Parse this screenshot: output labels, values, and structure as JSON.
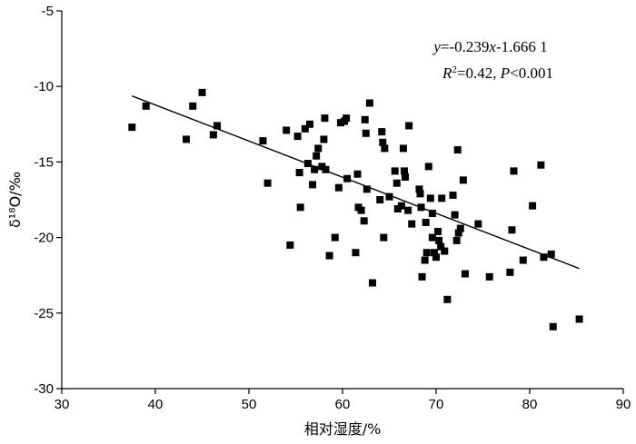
{
  "chart_data": {
    "type": "scatter",
    "title": "",
    "xlabel": "相对湿度/%",
    "ylabel": "δ¹⁸O/‰",
    "xlim": [
      30,
      90
    ],
    "ylim": [
      -30,
      -5
    ],
    "xticks": [
      30,
      40,
      50,
      60,
      70,
      80,
      90
    ],
    "yticks": [
      -5,
      -10,
      -15,
      -20,
      -25,
      -30
    ],
    "grid": false,
    "legend": "none",
    "marker": "square",
    "marker_color": "#000000",
    "points": [
      [
        37.5,
        -12.7
      ],
      [
        39.0,
        -11.3
      ],
      [
        43.3,
        -13.5
      ],
      [
        44.0,
        -11.3
      ],
      [
        45.0,
        -10.4
      ],
      [
        46.2,
        -13.2
      ],
      [
        46.6,
        -12.6
      ],
      [
        51.5,
        -13.6
      ],
      [
        52.0,
        -16.4
      ],
      [
        54.0,
        -12.9
      ],
      [
        54.4,
        -20.5
      ],
      [
        55.2,
        -13.3
      ],
      [
        55.4,
        -15.7
      ],
      [
        55.5,
        -18.0
      ],
      [
        56.0,
        -12.8
      ],
      [
        56.3,
        -15.1
      ],
      [
        56.5,
        -12.5
      ],
      [
        56.8,
        -16.5
      ],
      [
        57.0,
        -15.5
      ],
      [
        57.2,
        -14.6
      ],
      [
        57.4,
        -14.1
      ],
      [
        57.8,
        -15.3
      ],
      [
        58.0,
        -13.5
      ],
      [
        58.1,
        -12.1
      ],
      [
        58.2,
        -15.5
      ],
      [
        58.6,
        -21.2
      ],
      [
        59.2,
        -20.0
      ],
      [
        59.6,
        -16.7
      ],
      [
        59.8,
        -12.4
      ],
      [
        60.2,
        -12.3
      ],
      [
        60.4,
        -12.1
      ],
      [
        60.5,
        -16.1
      ],
      [
        61.4,
        -21.0
      ],
      [
        61.6,
        -15.8
      ],
      [
        61.7,
        -18.0
      ],
      [
        62.0,
        -18.2
      ],
      [
        62.3,
        -18.9
      ],
      [
        62.4,
        -12.2
      ],
      [
        62.5,
        -13.1
      ],
      [
        62.6,
        -16.8
      ],
      [
        62.9,
        -11.1
      ],
      [
        63.2,
        -23.0
      ],
      [
        64.0,
        -17.5
      ],
      [
        64.2,
        -13.0
      ],
      [
        64.3,
        -13.7
      ],
      [
        64.4,
        -20.0
      ],
      [
        64.5,
        -14.1
      ],
      [
        65.0,
        -17.3
      ],
      [
        65.6,
        -15.6
      ],
      [
        65.8,
        -16.4
      ],
      [
        65.9,
        -18.1
      ],
      [
        66.3,
        -17.9
      ],
      [
        66.5,
        -14.1
      ],
      [
        66.6,
        -15.6
      ],
      [
        66.7,
        -16.0
      ],
      [
        67.0,
        -18.2
      ],
      [
        67.1,
        -12.6
      ],
      [
        67.4,
        -19.1
      ],
      [
        68.2,
        -16.8
      ],
      [
        68.3,
        -17.1
      ],
      [
        68.4,
        -18.0
      ],
      [
        68.5,
        -22.6
      ],
      [
        68.8,
        -21.5
      ],
      [
        68.9,
        -19.0
      ],
      [
        69.0,
        -21.0
      ],
      [
        69.2,
        -15.3
      ],
      [
        69.4,
        -17.4
      ],
      [
        69.6,
        -18.4
      ],
      [
        69.6,
        -20.0
      ],
      [
        69.8,
        -21.0
      ],
      [
        70.0,
        -21.3
      ],
      [
        70.2,
        -19.6
      ],
      [
        70.3,
        -20.2
      ],
      [
        70.5,
        -20.6
      ],
      [
        70.6,
        -17.4
      ],
      [
        70.9,
        -20.9
      ],
      [
        71.2,
        -24.1
      ],
      [
        71.8,
        -17.2
      ],
      [
        72.0,
        -18.5
      ],
      [
        72.2,
        -20.2
      ],
      [
        72.3,
        -14.2
      ],
      [
        72.4,
        -19.7
      ],
      [
        72.6,
        -19.4
      ],
      [
        72.9,
        -16.2
      ],
      [
        73.1,
        -22.4
      ],
      [
        74.5,
        -19.1
      ],
      [
        75.7,
        -22.6
      ],
      [
        77.9,
        -22.3
      ],
      [
        78.1,
        -19.5
      ],
      [
        78.3,
        -15.6
      ],
      [
        79.3,
        -21.5
      ],
      [
        80.3,
        -17.9
      ],
      [
        81.2,
        -15.2
      ],
      [
        81.5,
        -21.3
      ],
      [
        82.3,
        -21.1
      ],
      [
        82.5,
        -25.9
      ],
      [
        85.3,
        -25.4
      ]
    ],
    "regression": {
      "slope": -0.239,
      "intercept": -1.6661,
      "x_range": [
        37.5,
        85.3
      ]
    },
    "annotations": {
      "equation_y": "y",
      "equation_eq": "=-0.239",
      "equation_x": "x",
      "equation_tail": "-1.666 1",
      "r_label": "R",
      "r_sup": "2",
      "r_value": "=0.42, ",
      "p_label": "P",
      "p_value": "<0.001"
    }
  }
}
